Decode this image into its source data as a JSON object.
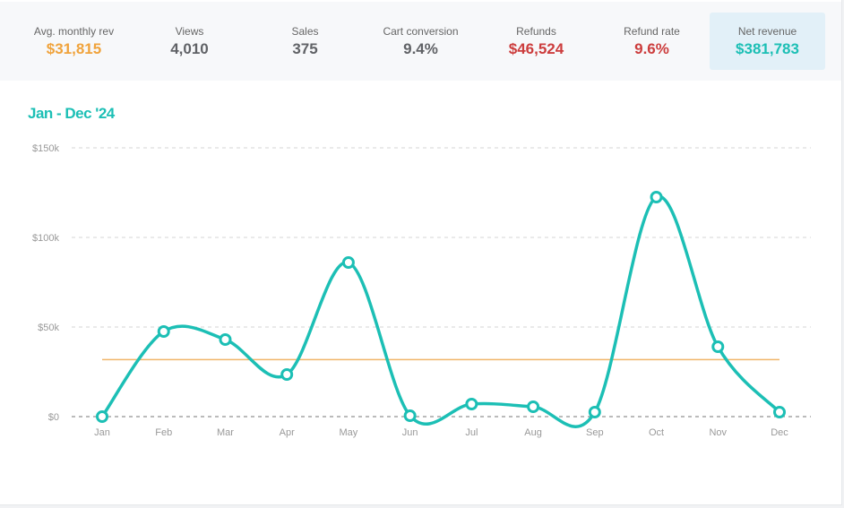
{
  "stats": [
    {
      "label": "Avg. monthly rev",
      "value": "$31,815",
      "color": "#f0a33c"
    },
    {
      "label": "Views",
      "value": "4,010",
      "color": "#606266"
    },
    {
      "label": "Sales",
      "value": "375",
      "color": "#606266"
    },
    {
      "label": "Cart conversion",
      "value": "9.4%",
      "color": "#606266"
    },
    {
      "label": "Refunds",
      "value": "$46,524",
      "color": "#cc3d3d"
    },
    {
      "label": "Refund rate",
      "value": "9.6%",
      "color": "#cc3d3d"
    },
    {
      "label": "Net revenue",
      "value": "$381,783",
      "color": "#1cbfb5",
      "highlighted": true
    }
  ],
  "period": "Jan - Dec '24",
  "chart_data": {
    "type": "line",
    "categories": [
      "Jan",
      "Feb",
      "Mar",
      "Apr",
      "May",
      "Jun",
      "Jul",
      "Aug",
      "Sep",
      "Oct",
      "Nov",
      "Dec"
    ],
    "series": [
      {
        "values": [
          0,
          47500,
          43000,
          23500,
          86000,
          500,
          7000,
          5500,
          2500,
          122500,
          39000,
          2500
        ],
        "color": "#1cbfb5"
      }
    ],
    "average_line": {
      "value": 31815,
      "color": "#f0b56a"
    },
    "ylim": [
      0,
      150000
    ],
    "yticks": [
      {
        "value": 0,
        "label": "$0"
      },
      {
        "value": 50000,
        "label": "$50k"
      },
      {
        "value": 100000,
        "label": "$100k"
      },
      {
        "value": 150000,
        "label": "$150k"
      }
    ],
    "grid": "horizontal dashed",
    "smooth": true
  }
}
